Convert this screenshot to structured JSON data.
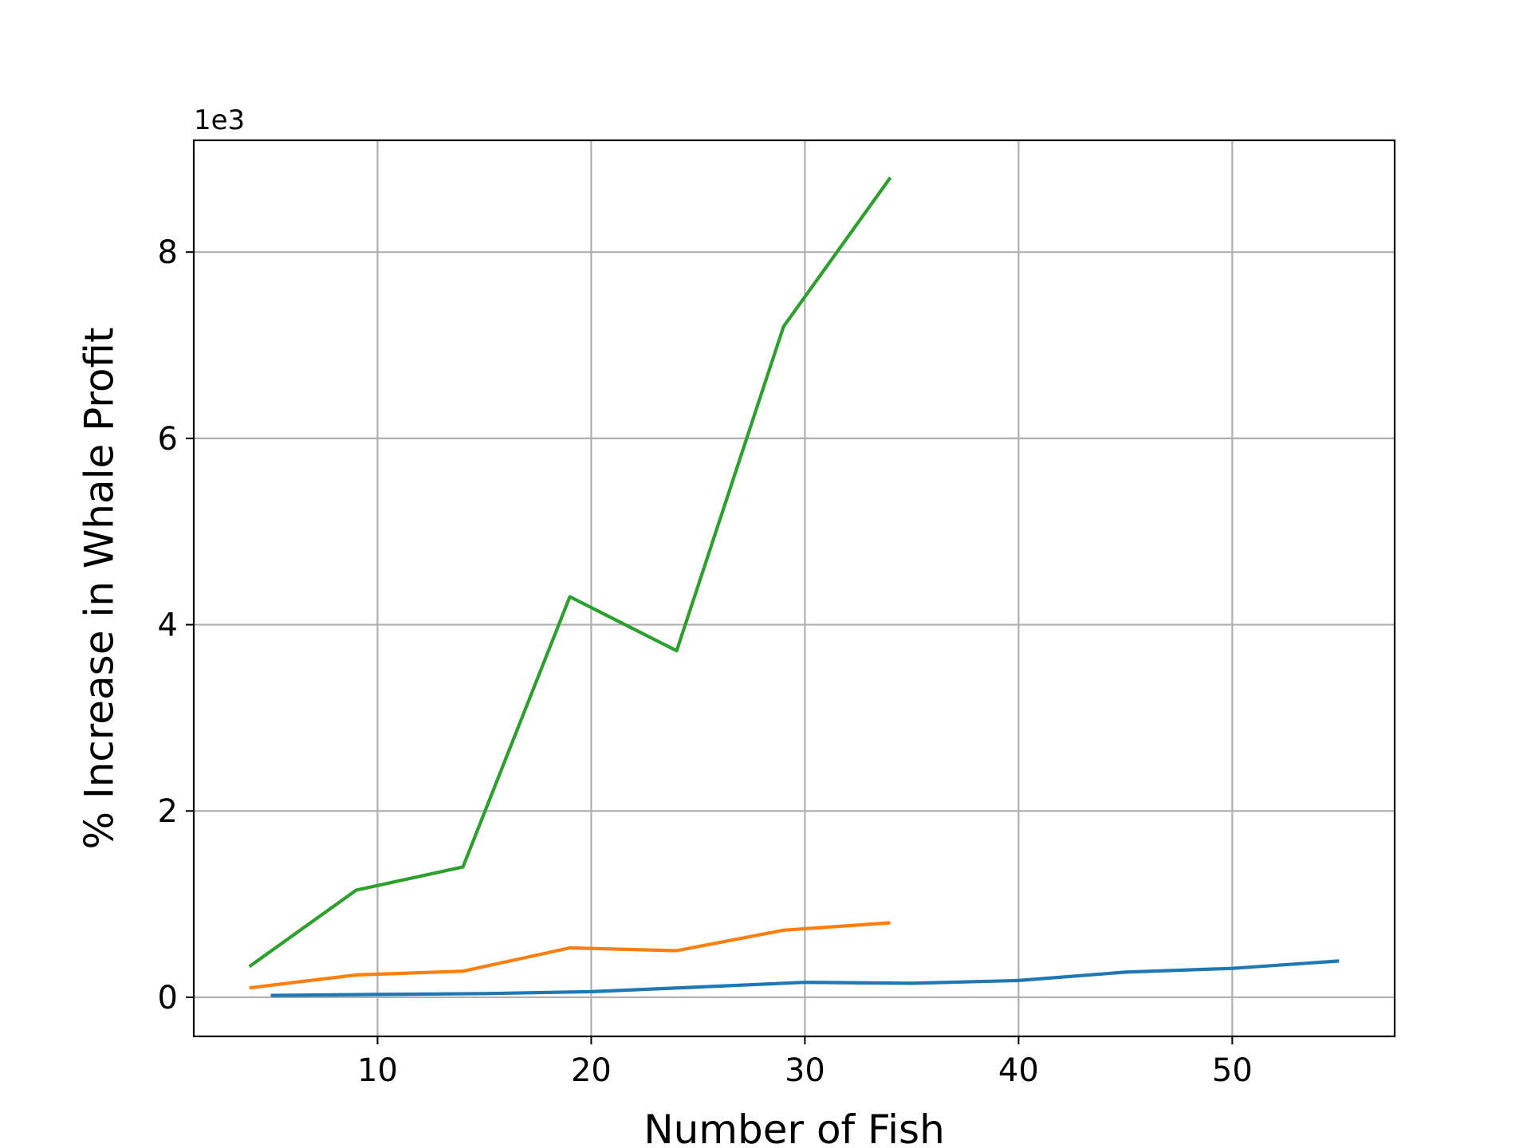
{
  "chart_data": {
    "type": "line",
    "title": "",
    "xlabel": "Number of Fish",
    "ylabel": "% Increase in Whale Profit",
    "y_offset_text": "1e3",
    "xlim": [
      1.4,
      57.6
    ],
    "ylim": [
      -0.42,
      9.2
    ],
    "xticks": [
      10,
      20,
      30,
      40,
      50
    ],
    "yticks": [
      0,
      2,
      4,
      6,
      8
    ],
    "grid": true,
    "series": [
      {
        "color": "#1f77b4",
        "x": [
          5,
          10,
          15,
          20,
          25,
          30,
          35,
          40,
          45,
          50,
          55
        ],
        "y": [
          0.02,
          0.03,
          0.04,
          0.06,
          0.11,
          0.16,
          0.15,
          0.18,
          0.27,
          0.31,
          0.39
        ]
      },
      {
        "color": "#ff7f0e",
        "x": [
          4,
          9,
          14,
          19,
          24,
          29,
          34
        ],
        "y": [
          0.1,
          0.24,
          0.28,
          0.53,
          0.5,
          0.72,
          0.8
        ]
      },
      {
        "color": "#2ca02c",
        "x": [
          4,
          9,
          14,
          19,
          24,
          29,
          34
        ],
        "y": [
          0.33,
          1.15,
          1.4,
          4.3,
          3.72,
          7.2,
          8.8
        ]
      }
    ]
  }
}
